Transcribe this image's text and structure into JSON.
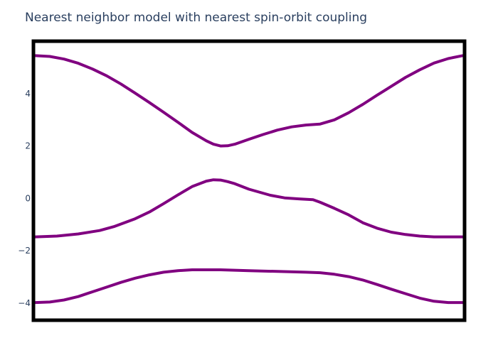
{
  "chart_data": {
    "type": "line",
    "title": "Nearest neighbor model with nearest spin-orbit coupling",
    "xlabel": "",
    "ylabel": "",
    "xlim": [
      0,
      60
    ],
    "ylim": [
      -4.6,
      5.95
    ],
    "yticks": [
      {
        "value": 4,
        "label": "4"
      },
      {
        "value": 2,
        "label": "2"
      },
      {
        "value": 0,
        "label": "0"
      },
      {
        "value": -2,
        "label": "−2"
      },
      {
        "value": -4,
        "label": "−4"
      }
    ],
    "grid": false,
    "legend": "none",
    "line_color": "#800080",
    "frame_color": "#000000",
    "series": [
      {
        "values": [
          {
            "x": 0,
            "y": 5.45
          },
          {
            "x": 2,
            "y": 5.42
          },
          {
            "x": 4,
            "y": 5.32
          },
          {
            "x": 6,
            "y": 5.16
          },
          {
            "x": 8,
            "y": 4.94
          },
          {
            "x": 10,
            "y": 4.68
          },
          {
            "x": 12,
            "y": 4.37
          },
          {
            "x": 14,
            "y": 4.02
          },
          {
            "x": 16,
            "y": 3.66
          },
          {
            "x": 18,
            "y": 3.29
          },
          {
            "x": 20,
            "y": 2.91
          },
          {
            "x": 22,
            "y": 2.52
          },
          {
            "x": 24,
            "y": 2.2
          },
          {
            "x": 25,
            "y": 2.07
          },
          {
            "x": 26,
            "y": 2.0
          },
          {
            "x": 27,
            "y": 2.01
          },
          {
            "x": 28,
            "y": 2.07
          },
          {
            "x": 30,
            "y": 2.26
          },
          {
            "x": 32,
            "y": 2.44
          },
          {
            "x": 34,
            "y": 2.61
          },
          {
            "x": 36,
            "y": 2.73
          },
          {
            "x": 38,
            "y": 2.8
          },
          {
            "x": 40,
            "y": 2.84
          },
          {
            "x": 42,
            "y": 3.0
          },
          {
            "x": 44,
            "y": 3.27
          },
          {
            "x": 46,
            "y": 3.59
          },
          {
            "x": 48,
            "y": 3.94
          },
          {
            "x": 50,
            "y": 4.28
          },
          {
            "x": 52,
            "y": 4.62
          },
          {
            "x": 54,
            "y": 4.91
          },
          {
            "x": 56,
            "y": 5.17
          },
          {
            "x": 58,
            "y": 5.34
          },
          {
            "x": 60,
            "y": 5.45
          }
        ]
      },
      {
        "values": [
          {
            "x": 0,
            "y": -1.47
          },
          {
            "x": 3,
            "y": -1.44
          },
          {
            "x": 6,
            "y": -1.36
          },
          {
            "x": 9,
            "y": -1.23
          },
          {
            "x": 11,
            "y": -1.08
          },
          {
            "x": 14,
            "y": -0.78
          },
          {
            "x": 16,
            "y": -0.52
          },
          {
            "x": 18,
            "y": -0.2
          },
          {
            "x": 20,
            "y": 0.13
          },
          {
            "x": 22,
            "y": 0.45
          },
          {
            "x": 24,
            "y": 0.66
          },
          {
            "x": 25,
            "y": 0.71
          },
          {
            "x": 26,
            "y": 0.7
          },
          {
            "x": 27,
            "y": 0.64
          },
          {
            "x": 28,
            "y": 0.56
          },
          {
            "x": 30,
            "y": 0.35
          },
          {
            "x": 33,
            "y": 0.12
          },
          {
            "x": 35,
            "y": 0.02
          },
          {
            "x": 37,
            "y": -0.02
          },
          {
            "x": 39,
            "y": -0.05
          },
          {
            "x": 40,
            "y": -0.15
          },
          {
            "x": 42,
            "y": -0.38
          },
          {
            "x": 44,
            "y": -0.63
          },
          {
            "x": 46,
            "y": -0.93
          },
          {
            "x": 48,
            "y": -1.14
          },
          {
            "x": 50,
            "y": -1.29
          },
          {
            "x": 52,
            "y": -1.38
          },
          {
            "x": 54,
            "y": -1.44
          },
          {
            "x": 56,
            "y": -1.47
          },
          {
            "x": 60,
            "y": -1.47
          }
        ]
      },
      {
        "values": [
          {
            "x": 0,
            "y": -3.98
          },
          {
            "x": 2,
            "y": -3.96
          },
          {
            "x": 4,
            "y": -3.88
          },
          {
            "x": 6,
            "y": -3.75
          },
          {
            "x": 8,
            "y": -3.57
          },
          {
            "x": 10,
            "y": -3.39
          },
          {
            "x": 12,
            "y": -3.21
          },
          {
            "x": 14,
            "y": -3.05
          },
          {
            "x": 16,
            "y": -2.92
          },
          {
            "x": 18,
            "y": -2.82
          },
          {
            "x": 20,
            "y": -2.76
          },
          {
            "x": 22,
            "y": -2.73
          },
          {
            "x": 26,
            "y": -2.73
          },
          {
            "x": 30,
            "y": -2.76
          },
          {
            "x": 34,
            "y": -2.79
          },
          {
            "x": 38,
            "y": -2.82
          },
          {
            "x": 40,
            "y": -2.84
          },
          {
            "x": 42,
            "y": -2.9
          },
          {
            "x": 44,
            "y": -2.99
          },
          {
            "x": 46,
            "y": -3.12
          },
          {
            "x": 48,
            "y": -3.29
          },
          {
            "x": 50,
            "y": -3.47
          },
          {
            "x": 52,
            "y": -3.64
          },
          {
            "x": 54,
            "y": -3.81
          },
          {
            "x": 56,
            "y": -3.93
          },
          {
            "x": 58,
            "y": -3.98
          },
          {
            "x": 60,
            "y": -3.98
          }
        ]
      }
    ]
  }
}
